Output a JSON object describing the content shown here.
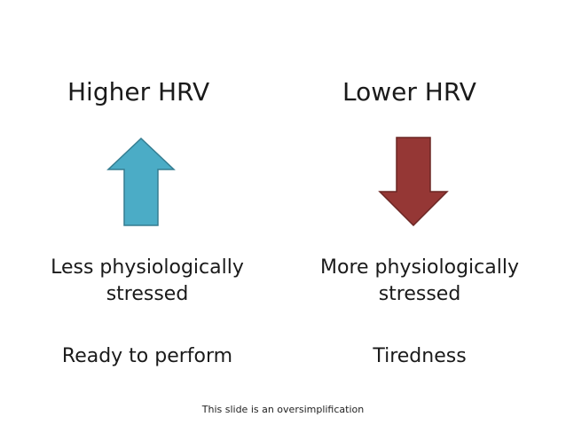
{
  "slide": {
    "left": {
      "heading": "Higher HRV",
      "arrow_icon": "up-arrow-icon",
      "arrow_color": "#4bacc6",
      "arrow_stroke": "#357d91",
      "state_line1": "Less physiologically",
      "state_line2": "stressed",
      "outcome": "Ready to perform"
    },
    "right": {
      "heading": "Lower HRV",
      "arrow_icon": "down-arrow-icon",
      "arrow_color": "#953735",
      "arrow_stroke": "#6b2624",
      "state_line1": "More physiologically",
      "state_line2": "stressed",
      "outcome": "Tiredness"
    },
    "footnote": "This slide is an oversimplification"
  }
}
